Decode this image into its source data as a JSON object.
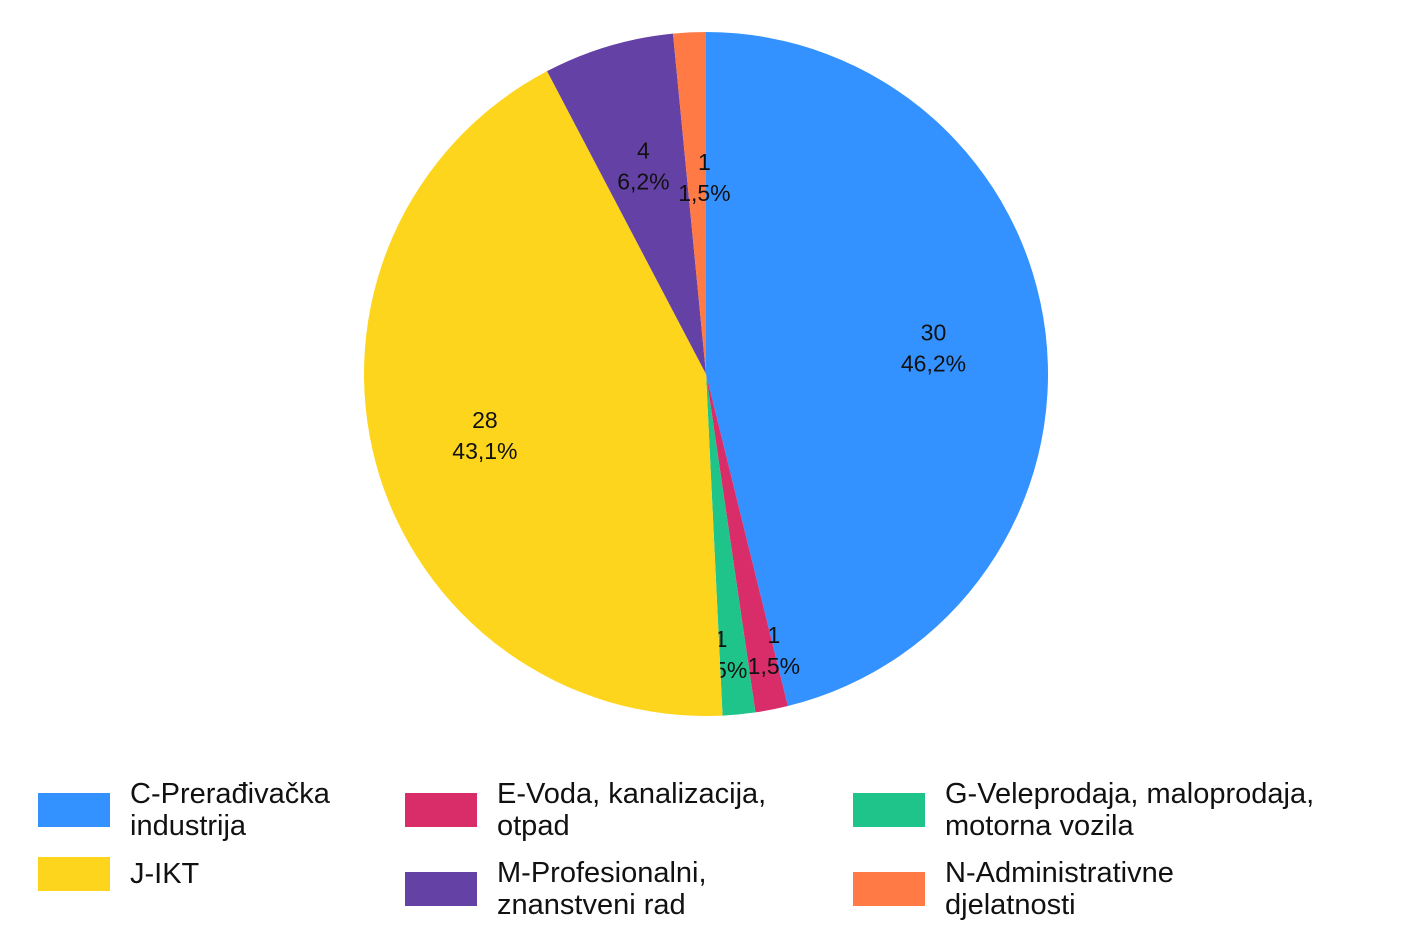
{
  "chart_data": {
    "type": "pie",
    "title": "",
    "slices": [
      {
        "name": "C-Prerađivačka industrija",
        "value": 30,
        "percent": "46,2%",
        "color": "#3392ff"
      },
      {
        "name": "E-Voda, kanalizacija, otpad",
        "value": 1,
        "percent": "1,5%",
        "color": "#d92d6a"
      },
      {
        "name": "G-Veleprodaja, maloprodaja, motorna vozila",
        "value": 1,
        "percent": "1,5%",
        "color": "#1ec48a"
      },
      {
        "name": "J-IKT",
        "value": 28,
        "percent": "43,1%",
        "color": "#fdd51c"
      },
      {
        "name": "M-Profesionalni, znanstveni rad",
        "value": 4,
        "percent": "6,2%",
        "color": "#6441a4"
      },
      {
        "name": "N-Administrativne djelatnosti",
        "value": 1,
        "percent": "1,5%",
        "color": "#ff7a45"
      }
    ],
    "legend_order": [
      0,
      1,
      2,
      3,
      4,
      5
    ],
    "legend_position": "bottom",
    "start_angle": "top, clockwise"
  }
}
